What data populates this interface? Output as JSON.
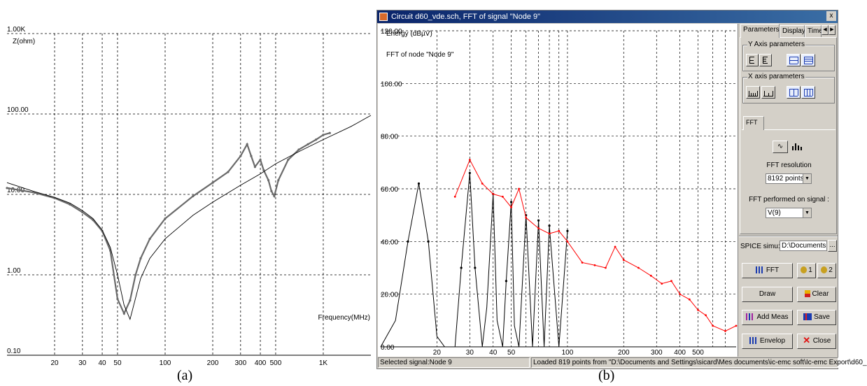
{
  "panel_a": {
    "y_axis_label": "Z(ohm)",
    "x_axis_label": "Frequency(MHz)",
    "y_ticks": [
      "1.00K",
      "100.00",
      "10.00",
      "1.00",
      "0.10"
    ],
    "x_ticks": [
      "20",
      "30",
      "40",
      "50",
      "100",
      "200",
      "300",
      "400",
      "500",
      "1K"
    ],
    "caption": "(a)"
  },
  "window": {
    "title": "Circuit d60_vde.sch, FFT of signal \"Node 9\"",
    "close_label": "x"
  },
  "panel_b": {
    "y_label": "Energy (dBµV)",
    "subtitle": "FFT of node \"Node 9\"",
    "y_ticks": [
      "120.00",
      "100.00",
      "80.00",
      "60.00",
      "40.00",
      "20.00",
      "0.00"
    ],
    "x_ticks": [
      "20",
      "30",
      "40",
      "50",
      "100",
      "200",
      "300",
      "400",
      "500"
    ],
    "caption": "(b)"
  },
  "side_panel": {
    "tabs": [
      "Parameters",
      "Display",
      "Time"
    ],
    "y_axis_group": "Y Axis parameters",
    "x_axis_group": "X axis parameters",
    "fft_tab": "FFT",
    "fft_resolution_label": "FFT resolution",
    "fft_resolution_value": "8192 points",
    "fft_signal_label": "FFT performed on signal :",
    "fft_signal_value": "V(9)",
    "spice_label": "SPICE simu:",
    "spice_value": "D:\\Documents a",
    "spice_browse": "...",
    "buttons": {
      "fft": "FFT",
      "probe1": "1",
      "probe2": "2",
      "draw": "Draw",
      "clear": "Clear",
      "add_meas": "Add Meas",
      "save": "Save",
      "envelop": "Envelop",
      "close": "Close"
    }
  },
  "status": {
    "selected": "Selected signal:Node 9",
    "loaded": "Loaded 819 points from \"D:\\Documents and Settings\\sicard\\Mes documents\\ic-emc soft\\Ic-emc Export\\d60_"
  },
  "colors": {
    "title_bar_start": "#0a246a",
    "title_bar_end": "#3a6ea5",
    "measurement_curve": "#6a6a6a",
    "fft_spectrum": "#000000",
    "envelope": "#ff0000"
  },
  "chart_data": [
    {
      "type": "line",
      "xscale": "log",
      "yscale": "log",
      "ylabel": "Z(ohm)",
      "xlabel": "Frequency(MHz)",
      "xlim": [
        10,
        2000
      ],
      "ylim": [
        0.1,
        1000
      ],
      "grid": true,
      "series": [
        {
          "x": [
            10,
            15,
            20,
            25,
            30,
            35,
            40,
            45,
            50,
            55,
            60,
            65,
            70,
            80,
            100,
            150,
            200,
            250,
            300,
            330,
            350,
            370,
            400,
            420,
            450,
            470,
            490,
            520,
            600,
            700,
            800,
            900,
            1000,
            1100
          ],
          "y": [
            12,
            10.5,
            9,
            7.5,
            6.0,
            4.8,
            3.5,
            2.0,
            0.5,
            0.33,
            0.48,
            1.0,
            1.6,
            2.8,
            5.0,
            9.5,
            14,
            19,
            30,
            42,
            30,
            22,
            27,
            20,
            15,
            11,
            9.5,
            15,
            27,
            36,
            42,
            48,
            55,
            58
          ]
        },
        {
          "x": [
            10,
            15,
            20,
            25,
            30,
            35,
            40,
            45,
            50,
            55,
            60,
            70,
            80,
            100,
            150,
            200,
            300,
            400,
            500,
            700,
            1000,
            1500,
            2000
          ],
          "y": [
            14,
            10.8,
            9.2,
            7.8,
            6.3,
            5.0,
            3.6,
            2.2,
            1.0,
            0.42,
            0.28,
            0.9,
            1.6,
            2.8,
            5.5,
            8.0,
            13,
            18,
            24,
            34,
            48,
            70,
            96
          ]
        }
      ]
    },
    {
      "type": "line",
      "xscale": "log",
      "ylabel": "Energy (dBµV)",
      "xlim": [
        10,
        800
      ],
      "ylim": [
        0,
        120
      ],
      "grid": true,
      "series": [
        {
          "x": [
            10,
            12,
            14,
            16,
            18,
            20,
            22,
            25,
            27,
            30,
            32,
            35,
            37,
            40,
            42,
            45,
            47,
            50,
            52,
            55,
            60,
            65,
            70,
            75,
            80,
            90,
            100
          ],
          "y": [
            0,
            10,
            40,
            62,
            40,
            4,
            0,
            0,
            30,
            66,
            30,
            0,
            15,
            58,
            10,
            0,
            25,
            55,
            8,
            0,
            50,
            0,
            48,
            0,
            46,
            0,
            44
          ]
        },
        {
          "x": [
            25,
            30,
            35,
            40,
            45,
            50,
            55,
            60,
            70,
            80,
            90,
            100,
            120,
            140,
            160,
            180,
            200,
            240,
            280,
            320,
            360,
            400,
            450,
            500,
            550,
            600,
            700,
            800
          ],
          "y": [
            57,
            71,
            62,
            58,
            57,
            53,
            60,
            49,
            45,
            43,
            44,
            40,
            32,
            31,
            30,
            38,
            33,
            30,
            27,
            24,
            25,
            20,
            18,
            14,
            12,
            8,
            6,
            8
          ]
        }
      ]
    }
  ]
}
